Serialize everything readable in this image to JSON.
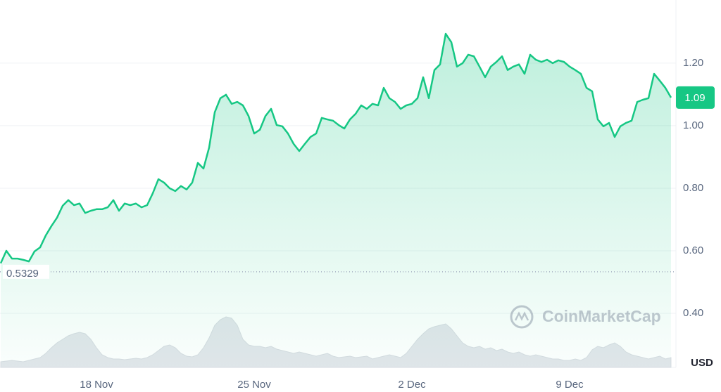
{
  "chart_data": {
    "type": "line",
    "categories": [
      null,
      null,
      null,
      null,
      null,
      null,
      null,
      null,
      null,
      null,
      null,
      null,
      null,
      null,
      null,
      null,
      null,
      "18 Nov",
      null,
      null,
      null,
      null,
      null,
      null,
      null,
      null,
      null,
      null,
      null,
      null,
      null,
      null,
      null,
      null,
      null,
      null,
      null,
      null,
      null,
      null,
      null,
      null,
      null,
      null,
      null,
      "25 Nov",
      null,
      null,
      null,
      null,
      null,
      null,
      null,
      null,
      null,
      null,
      null,
      null,
      null,
      null,
      null,
      null,
      null,
      null,
      null,
      null,
      null,
      null,
      null,
      null,
      null,
      null,
      null,
      "2 Dec",
      null,
      null,
      null,
      null,
      null,
      null,
      null,
      null,
      null,
      null,
      null,
      null,
      null,
      null,
      null,
      null,
      null,
      null,
      null,
      null,
      null,
      null,
      null,
      null,
      null,
      null,
      null,
      "9 Dec",
      null,
      null,
      null,
      null,
      null,
      null,
      null,
      null,
      null,
      null,
      null,
      null,
      null,
      null,
      null,
      null,
      null,
      null
    ],
    "series": [
      {
        "color": "#16c784",
        "values": [
          0.56,
          0.6,
          0.575,
          0.575,
          0.571,
          0.566,
          0.598,
          0.611,
          0.649,
          0.679,
          0.706,
          0.744,
          0.762,
          0.746,
          0.751,
          0.721,
          0.728,
          0.733,
          0.733,
          0.739,
          0.762,
          0.728,
          0.751,
          0.746,
          0.751,
          0.739,
          0.746,
          0.784,
          0.829,
          0.818,
          0.8,
          0.791,
          0.807,
          0.796,
          0.818,
          0.881,
          0.863,
          0.93,
          1.043,
          1.088,
          1.099,
          1.07,
          1.076,
          1.065,
          1.031,
          0.975,
          0.987,
          1.031,
          1.054,
          1.002,
          0.998,
          0.975,
          0.942,
          0.919,
          0.942,
          0.964,
          0.975,
          1.025,
          1.02,
          1.016,
          1.002,
          0.991,
          1.02,
          1.038,
          1.065,
          1.054,
          1.07,
          1.065,
          1.121,
          1.088,
          1.076,
          1.054,
          1.065,
          1.07,
          1.088,
          1.155,
          1.088,
          1.178,
          1.196,
          1.294,
          1.267,
          1.189,
          1.2,
          1.227,
          1.222,
          1.189,
          1.155,
          1.189,
          1.204,
          1.222,
          1.178,
          1.189,
          1.196,
          1.166,
          1.227,
          1.211,
          1.204,
          1.211,
          1.2,
          1.209,
          1.204,
          1.189,
          1.178,
          1.166,
          1.121,
          1.11,
          1.02,
          0.998,
          1.009,
          0.964,
          0.998,
          1.009,
          1.016,
          1.076,
          1.083,
          1.088,
          1.166,
          1.144,
          1.121,
          1.09
        ]
      },
      {
        "color": "#e3e6eb",
        "axis": "y2",
        "values": [
          8,
          9,
          10,
          9,
          8,
          10,
          12,
          14,
          20,
          28,
          35,
          40,
          45,
          48,
          50,
          48,
          40,
          28,
          18,
          14,
          12,
          12,
          11,
          12,
          13,
          12,
          14,
          18,
          24,
          30,
          32,
          28,
          20,
          16,
          15,
          18,
          28,
          42,
          60,
          68,
          72,
          70,
          60,
          40,
          32,
          30,
          30,
          28,
          30,
          26,
          24,
          22,
          20,
          22,
          20,
          18,
          16,
          18,
          20,
          16,
          14,
          15,
          16,
          14,
          15,
          16,
          12,
          14,
          16,
          18,
          16,
          14,
          20,
          30,
          40,
          48,
          55,
          58,
          60,
          62,
          55,
          45,
          35,
          30,
          28,
          30,
          26,
          28,
          24,
          26,
          22,
          20,
          22,
          18,
          16,
          18,
          16,
          14,
          12,
          12,
          10,
          10,
          12,
          10,
          14,
          25,
          30,
          28,
          32,
          35,
          30,
          22,
          18,
          16,
          14,
          12,
          14,
          16,
          12,
          14
        ]
      }
    ],
    "ylim": [
      0.227,
      1.402
    ],
    "yticks": [
      {
        "value": 0.4,
        "label": "0.40"
      },
      {
        "value": 0.6,
        "label": "0.60"
      },
      {
        "value": 0.8,
        "label": "0.80"
      },
      {
        "value": 1,
        "label": "1.00"
      },
      {
        "value": 1.2,
        "label": "1.20"
      }
    ],
    "y2lim": [
      0,
      100
    ],
    "grid": true,
    "last_price": 1.09,
    "reference_line": 0.5329,
    "watermark": "CoinMarketCap",
    "currency": "USD"
  }
}
